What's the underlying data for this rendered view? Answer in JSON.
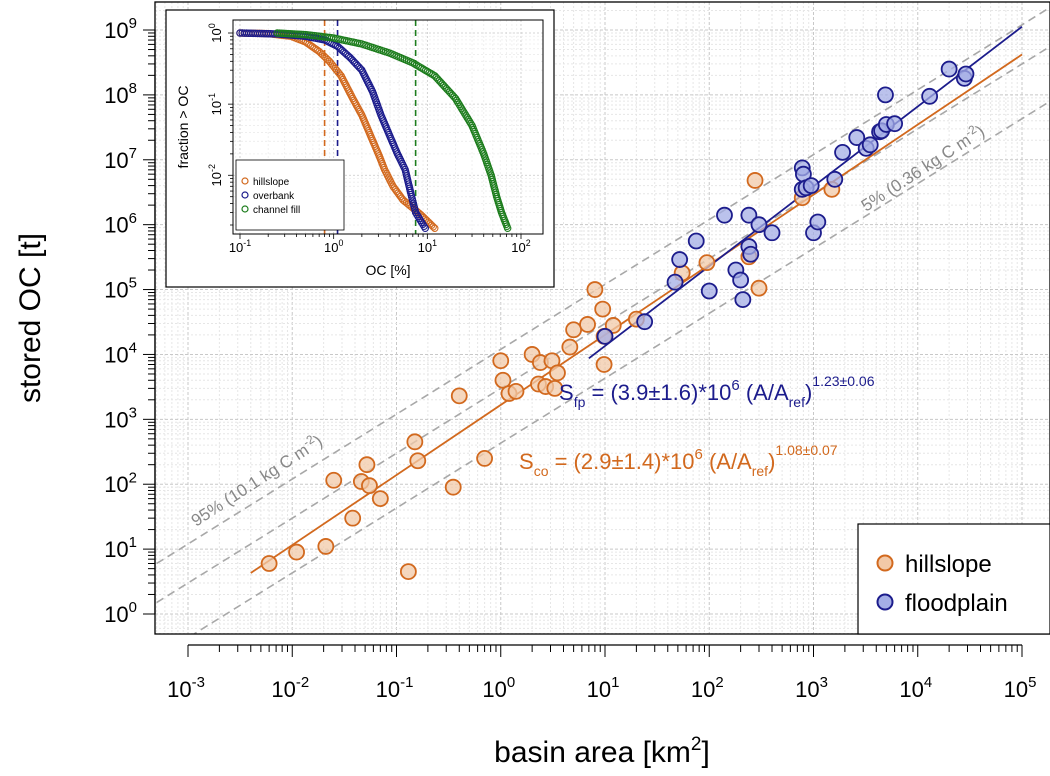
{
  "chart_data": {
    "type": "scatter",
    "xlabel": "basin area [km",
    "xlabel_sup": "2",
    "xlabel_end": "]",
    "ylabel": "stored OC [t]",
    "xscale": "log",
    "yscale": "log",
    "xlim": [
      0.001,
      100000
    ],
    "ylim": [
      1,
      1000000000
    ],
    "grid": true,
    "legend_position": "bottom-right",
    "x_tick_labels": [
      {
        "base": "10",
        "exp": "-3"
      },
      {
        "base": "10",
        "exp": "-2"
      },
      {
        "base": "10",
        "exp": "-1"
      },
      {
        "base": "10",
        "exp": "0"
      },
      {
        "base": "10",
        "exp": "1"
      },
      {
        "base": "10",
        "exp": "2"
      },
      {
        "base": "10",
        "exp": "3"
      },
      {
        "base": "10",
        "exp": "4"
      },
      {
        "base": "10",
        "exp": "5"
      }
    ],
    "y_tick_labels": [
      {
        "base": "10",
        "exp": "0"
      },
      {
        "base": "10",
        "exp": "1"
      },
      {
        "base": "10",
        "exp": "2"
      },
      {
        "base": "10",
        "exp": "3"
      },
      {
        "base": "10",
        "exp": "4"
      },
      {
        "base": "10",
        "exp": "5"
      },
      {
        "base": "10",
        "exp": "6"
      },
      {
        "base": "10",
        "exp": "7"
      },
      {
        "base": "10",
        "exp": "8"
      },
      {
        "base": "10",
        "exp": "9"
      }
    ],
    "series": [
      {
        "name": "hillslope",
        "color": "#d2691e",
        "fill": "#f2c9a8",
        "points": [
          [
            0.006,
            6
          ],
          [
            0.011,
            9
          ],
          [
            0.021,
            11
          ],
          [
            0.025,
            115
          ],
          [
            0.038,
            30
          ],
          [
            0.046,
            110
          ],
          [
            0.052,
            200
          ],
          [
            0.055,
            95
          ],
          [
            0.07,
            60
          ],
          [
            0.13,
            4.5
          ],
          [
            0.15,
            450
          ],
          [
            0.16,
            230
          ],
          [
            0.35,
            90
          ],
          [
            0.4,
            2300
          ],
          [
            0.7,
            250
          ],
          [
            1.0,
            8000
          ],
          [
            1.05,
            4000
          ],
          [
            1.2,
            2500
          ],
          [
            1.4,
            2700
          ],
          [
            2.0,
            10000
          ],
          [
            2.3,
            3500
          ],
          [
            2.4,
            7500
          ],
          [
            2.7,
            3200
          ],
          [
            3.1,
            8000
          ],
          [
            3.3,
            3000
          ],
          [
            3.5,
            5200
          ],
          [
            4.6,
            13000
          ],
          [
            5.0,
            24000
          ],
          [
            6.8,
            29000
          ],
          [
            8.0,
            100000
          ],
          [
            9.5,
            50000
          ],
          [
            9.8,
            19000
          ],
          [
            9.8,
            7000
          ],
          [
            12,
            28000
          ],
          [
            20,
            35000
          ],
          [
            55,
            180000
          ],
          [
            95,
            260000
          ],
          [
            240,
            320000
          ],
          [
            275,
            4800000
          ],
          [
            300,
            105000
          ],
          [
            780,
            2600000
          ],
          [
            1500,
            3500000
          ]
        ]
      },
      {
        "name": "floodplain",
        "color": "#1c1c8c",
        "fill": "#a4aee6",
        "points": [
          [
            10,
            19000
          ],
          [
            24,
            32000
          ],
          [
            47,
            130000
          ],
          [
            52,
            290000
          ],
          [
            75,
            560000
          ],
          [
            100,
            95000
          ],
          [
            140,
            1400000
          ],
          [
            180,
            200000
          ],
          [
            200,
            140000
          ],
          [
            210,
            70000
          ],
          [
            240,
            1400000
          ],
          [
            240,
            460000
          ],
          [
            250,
            350000
          ],
          [
            300,
            1000000
          ],
          [
            400,
            750000
          ],
          [
            780,
            7500000
          ],
          [
            780,
            3500000
          ],
          [
            800,
            6000000
          ],
          [
            850,
            3700000
          ],
          [
            950,
            4000000
          ],
          [
            1000,
            750000
          ],
          [
            1100,
            1100000
          ],
          [
            1600,
            5000000
          ],
          [
            1900,
            13000000
          ],
          [
            2600,
            22000000
          ],
          [
            3200,
            15000000
          ],
          [
            3500,
            17000000
          ],
          [
            4300,
            27000000
          ],
          [
            4500,
            28000000
          ],
          [
            4900,
            100000000
          ],
          [
            5000,
            35000000
          ],
          [
            6000,
            36000000
          ],
          [
            13000,
            95000000
          ],
          [
            20000,
            250000000
          ],
          [
            28000,
            180000000
          ],
          [
            29000,
            210000000
          ]
        ]
      }
    ],
    "fit_lines": [
      {
        "name": "hillslope fit",
        "color": "#d2691e",
        "A": 2900000.0,
        "b": 1.08,
        "xmin": 0.004,
        "xmax": 100000
      },
      {
        "name": "floodplain fit",
        "color": "#1c1c8c",
        "A": 3900000.0,
        "b": 1.23,
        "xmin": 7,
        "xmax": 100000
      }
    ],
    "reference_lines": [
      {
        "a": 12000,
        "b": 1.0,
        "color": "#a8a8a8"
      },
      {
        "a": 3000,
        "b": 1.0,
        "color": "#a8a8a8"
      },
      {
        "a": 430,
        "b": 1.0,
        "color": "#a8a8a8"
      }
    ],
    "annotations": {
      "fp_eq": {
        "main": "S",
        "sub": "fp",
        "mid": " = (3.9±1.6)*10",
        "exp": "6",
        "paren": " (A/A",
        "sub2": "ref",
        "close": ")",
        "exp2": "1.23±0.06",
        "color": "#1c1c8c"
      },
      "co_eq": {
        "main": "S",
        "sub": "co",
        "mid": " = (2.9±1.4)*10",
        "exp": "6",
        "paren": " (A/A",
        "sub2": "ref",
        "close": ")",
        "exp2": "1.08±0.07",
        "color": "#d2691e"
      },
      "pct95": {
        "text": "95% (10.1 kg C m",
        "sup": "-2",
        "end": ")"
      },
      "pct5": {
        "text": "5% (0.36 kg C m",
        "sup": "-2",
        "end": ")"
      }
    },
    "legend": [
      {
        "label": "hillslope",
        "color": "#d2691e",
        "fill": "#f2c9a8"
      },
      {
        "label": "floodplain",
        "color": "#1c1c8c",
        "fill": "#a4aee6"
      }
    ],
    "inset": {
      "type": "line",
      "xlabel": "OC [%]",
      "ylabel": "fraction > OC",
      "xscale": "log",
      "yscale": "log",
      "xlim": [
        0.1,
        100
      ],
      "ylim": [
        0.002,
        1
      ],
      "x_tick_labels": [
        {
          "base": "10",
          "exp": "-1"
        },
        {
          "base": "10",
          "exp": "0"
        },
        {
          "base": "10",
          "exp": "1"
        },
        {
          "base": "10",
          "exp": "2"
        }
      ],
      "y_tick_labels": [
        {
          "base": "10",
          "exp": "0"
        },
        {
          "base": "10",
          "exp": "-1"
        },
        {
          "base": "10",
          "exp": "-2"
        }
      ],
      "series": [
        {
          "name": "hillslope",
          "color": "#d2691e",
          "points": [
            [
              0.1,
              1.0
            ],
            [
              0.2,
              0.98
            ],
            [
              0.35,
              0.9
            ],
            [
              0.5,
              0.75
            ],
            [
              0.7,
              0.55
            ],
            [
              0.9,
              0.4
            ],
            [
              1.2,
              0.25
            ],
            [
              1.6,
              0.12
            ],
            [
              2.0,
              0.07
            ],
            [
              2.5,
              0.035
            ],
            [
              3.0,
              0.02
            ],
            [
              3.5,
              0.012
            ],
            [
              4.3,
              0.007
            ],
            [
              5.5,
              0.0045
            ],
            [
              8.5,
              0.0028
            ],
            [
              12,
              0.0018
            ]
          ]
        },
        {
          "name": "overbank",
          "color": "#1c1c8c",
          "points": [
            [
              0.1,
              1.0
            ],
            [
              0.25,
              0.97
            ],
            [
              0.5,
              0.9
            ],
            [
              0.8,
              0.8
            ],
            [
              1.1,
              0.65
            ],
            [
              1.5,
              0.45
            ],
            [
              2.0,
              0.3
            ],
            [
              2.6,
              0.15
            ],
            [
              3.2,
              0.07
            ],
            [
              4.0,
              0.035
            ],
            [
              4.8,
              0.02
            ],
            [
              5.8,
              0.012
            ],
            [
              6.8,
              0.005
            ],
            [
              7.5,
              0.003
            ],
            [
              9.5,
              0.0018
            ]
          ]
        },
        {
          "name": "channel fill",
          "color": "#1d7d1d",
          "points": [
            [
              0.25,
              1.0
            ],
            [
              0.5,
              0.95
            ],
            [
              1.0,
              0.85
            ],
            [
              2.0,
              0.7
            ],
            [
              4.0,
              0.52
            ],
            [
              7.0,
              0.38
            ],
            [
              12,
              0.25
            ],
            [
              20,
              0.12
            ],
            [
              30,
              0.05
            ],
            [
              40,
              0.02
            ],
            [
              48,
              0.01
            ],
            [
              55,
              0.005
            ],
            [
              62,
              0.003
            ],
            [
              72,
              0.0018
            ]
          ]
        }
      ],
      "vlines": [
        {
          "x": 0.8,
          "color": "#d2691e"
        },
        {
          "x": 1.1,
          "color": "#1c1c8c"
        },
        {
          "x": 7.5,
          "color": "#1d7d1d"
        }
      ],
      "legend": [
        {
          "label": "hillslope",
          "color": "#d2691e"
        },
        {
          "label": "overbank",
          "color": "#1c1c8c"
        },
        {
          "label": "channel fill",
          "color": "#1d7d1d"
        }
      ]
    }
  }
}
